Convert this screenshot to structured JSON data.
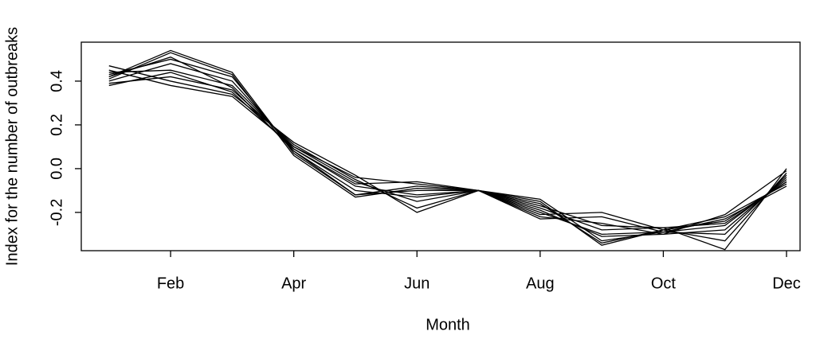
{
  "chart_data": {
    "type": "line",
    "x_label": "Month",
    "y_label": "Index for the number of outbreaks",
    "x": [
      1,
      2,
      3,
      4,
      5,
      6,
      7,
      8,
      9,
      10,
      11,
      12
    ],
    "xlim": [
      0.55,
      12.22
    ],
    "xticks": [
      {
        "value": 2,
        "label": "Feb"
      },
      {
        "value": 4,
        "label": "Apr"
      },
      {
        "value": 6,
        "label": "Jun"
      },
      {
        "value": 8,
        "label": "Aug"
      },
      {
        "value": 10,
        "label": "Oct"
      },
      {
        "value": 12,
        "label": "Dec"
      }
    ],
    "ylim": [
      -0.375,
      0.578
    ],
    "yticks": [
      -0.2,
      {
        "value": 0,
        "label": "0.0"
      },
      0.2,
      0.4
    ],
    "series": [
      {
        "color": "#000000",
        "values": [
          0.42,
          0.54,
          0.44,
          0.07,
          -0.12,
          -0.08,
          -0.1,
          -0.15,
          -0.35,
          -0.28,
          -0.22,
          -0.07
        ]
      },
      {
        "color": "#000000",
        "values": [
          0.41,
          0.53,
          0.43,
          0.06,
          -0.13,
          -0.09,
          -0.1,
          -0.14,
          -0.33,
          -0.29,
          -0.23,
          -0.08
        ]
      },
      {
        "color": "#000000",
        "values": [
          0.43,
          0.5,
          0.42,
          0.08,
          -0.12,
          -0.1,
          -0.1,
          -0.16,
          -0.34,
          -0.28,
          -0.24,
          -0.06
        ]
      },
      {
        "color": "#000000",
        "values": [
          0.4,
          0.48,
          0.4,
          0.09,
          -0.08,
          -0.12,
          -0.1,
          -0.2,
          -0.3,
          -0.29,
          -0.26,
          -0.05
        ]
      },
      {
        "color": "#000000",
        "values": [
          0.44,
          0.45,
          0.38,
          0.1,
          -0.06,
          -0.15,
          -0.1,
          -0.22,
          -0.25,
          -0.3,
          -0.28,
          -0.04
        ]
      },
      {
        "color": "#000000",
        "values": [
          0.39,
          0.42,
          0.36,
          0.11,
          -0.05,
          -0.18,
          -0.1,
          -0.23,
          -0.22,
          -0.29,
          -0.3,
          -0.03
        ]
      },
      {
        "color": "#000000",
        "values": [
          0.47,
          0.4,
          0.34,
          0.12,
          -0.03,
          -0.2,
          -0.1,
          -0.21,
          -0.2,
          -0.28,
          -0.33,
          -0.02
        ]
      },
      {
        "color": "#000000",
        "values": [
          0.45,
          0.38,
          0.33,
          0.1,
          -0.04,
          -0.07,
          -0.1,
          -0.18,
          -0.28,
          -0.27,
          -0.37,
          0.0
        ]
      },
      {
        "color": "#000000",
        "values": [
          0.38,
          0.44,
          0.35,
          0.09,
          -0.07,
          -0.06,
          -0.1,
          -0.19,
          -0.31,
          -0.3,
          -0.21,
          -0.01
        ]
      },
      {
        "color": "#000000",
        "values": [
          0.42,
          0.51,
          0.37,
          0.08,
          -0.1,
          -0.13,
          -0.1,
          -0.17,
          -0.26,
          -0.27,
          -0.25,
          -0.06
        ]
      }
    ]
  }
}
